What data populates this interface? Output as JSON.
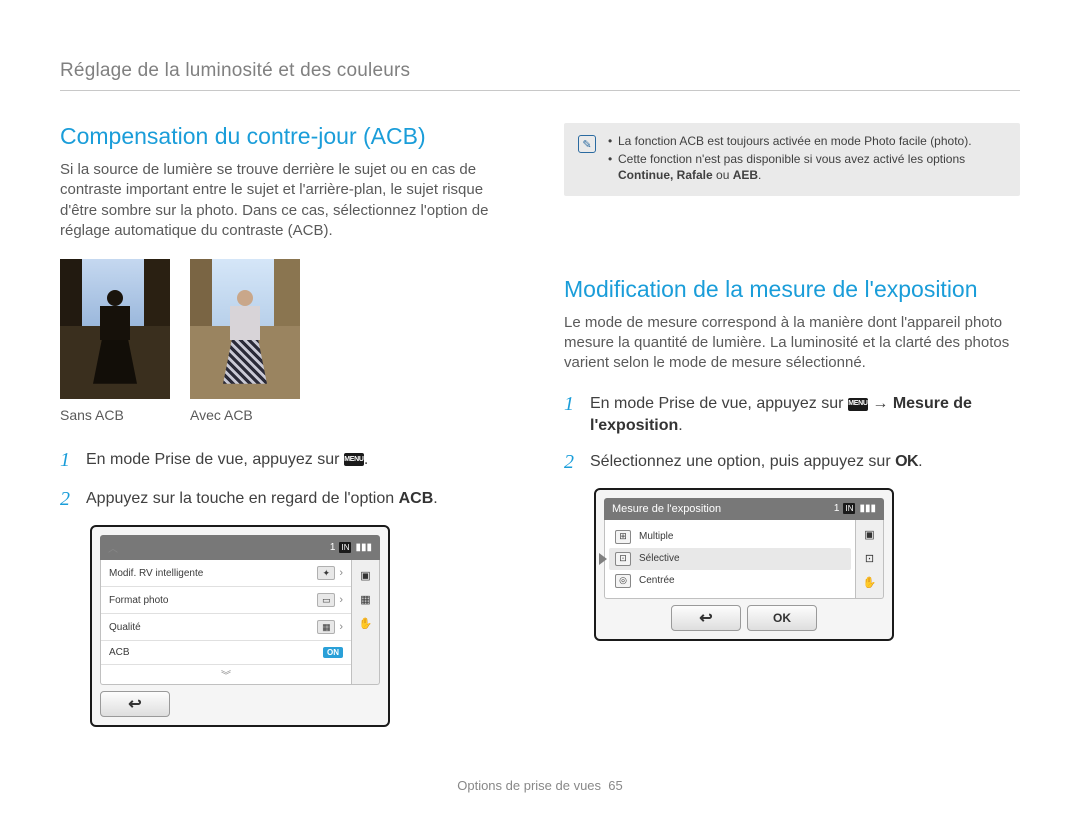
{
  "breadcrumb": "Réglage de la luminosité et des couleurs",
  "left": {
    "title": "Compensation du contre-jour (ACB)",
    "body": "Si la source de lumière se trouve derrière le sujet ou en cas de contraste important entre le sujet et l'arrière-plan, le sujet risque d'être sombre sur la photo. Dans ce cas, sélectionnez l'option de réglage automatique du contraste (ACB).",
    "photo1_label": "Sans ACB",
    "photo2_label": "Avec ACB",
    "step1_pre": "En mode Prise de vue, appuyez sur ",
    "step1_post": ".",
    "step2_pre": "Appuyez sur la touche en regard de l'option ",
    "step2_bold": "ACB",
    "step2_post": ".",
    "lcd": {
      "title_bar_num": "1",
      "rows": [
        {
          "label": "Modif. RV intelligente",
          "icon": "✦"
        },
        {
          "label": "Format photo",
          "icon": "▭"
        },
        {
          "label": "Qualité",
          "icon": "▦"
        },
        {
          "label": "ACB",
          "on": "ON"
        }
      ]
    }
  },
  "right": {
    "info1": "La fonction ACB est toujours activée en mode Photo facile (photo).",
    "info2_pre": "Cette fonction n'est pas disponible si vous avez activé les options ",
    "info2_bold": "Continue, Rafale",
    "info2_mid": " ou ",
    "info2_bold2": "AEB",
    "info2_post": ".",
    "title": "Modification de la mesure de l'exposition",
    "body": "Le mode de mesure correspond à la manière dont l'appareil photo mesure la quantité de lumière. La luminosité et la clarté des photos varient selon le mode de mesure sélectionné.",
    "step1_pre": "En mode Prise de vue, appuyez sur ",
    "step1_arrow": " → ",
    "step1_bold": "Mesure de l'exposition",
    "step1_post": ".",
    "step2_pre": "Sélectionnez une option, puis appuyez sur ",
    "step2_post": ".",
    "lcd": {
      "header": "Mesure de l'exposition",
      "header_num": "1",
      "options": [
        {
          "label": "Multiple",
          "icon": "⊞"
        },
        {
          "label": "Sélective",
          "icon": "⊡",
          "selected": true
        },
        {
          "label": "Centrée",
          "icon": "◎"
        }
      ],
      "ok": "OK"
    }
  },
  "footer_text": "Options de prise de vues",
  "footer_page": "65",
  "menu_chip": "MENU",
  "ok_label": "OK"
}
